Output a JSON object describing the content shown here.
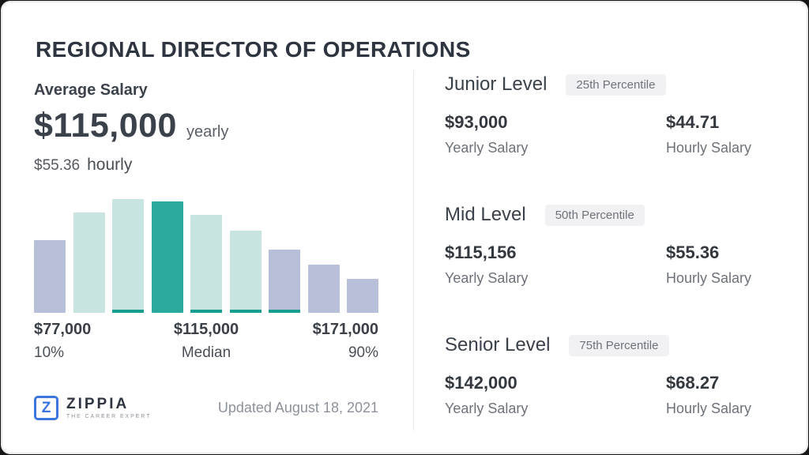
{
  "page": {
    "title": "REGIONAL DIRECTOR OF OPERATIONS"
  },
  "average": {
    "section_title": "Average Salary",
    "yearly_value": "$115,000",
    "yearly_unit": "yearly",
    "hourly_value": "$55.36",
    "hourly_unit": "hourly"
  },
  "chart_data": {
    "type": "bar",
    "title": "Salary distribution histogram",
    "xlabel": "",
    "ylabel": "",
    "grid": false,
    "legend": false,
    "x_tick_labels": [
      {
        "label": "$77,000",
        "sublabel": "10%"
      },
      {
        "label": "$115,000",
        "sublabel": "Median"
      },
      {
        "label": "$171,000",
        "sublabel": "90%"
      }
    ],
    "bars": [
      {
        "height_pct": 62,
        "color_key": "lavender",
        "baseline_stripe": false
      },
      {
        "height_pct": 86,
        "color_key": "mint",
        "baseline_stripe": false
      },
      {
        "height_pct": 97,
        "color_key": "mint",
        "baseline_stripe": true
      },
      {
        "height_pct": 95,
        "color_key": "teal",
        "baseline_stripe": false
      },
      {
        "height_pct": 84,
        "color_key": "mint",
        "baseline_stripe": true
      },
      {
        "height_pct": 70,
        "color_key": "mint",
        "baseline_stripe": true
      },
      {
        "height_pct": 54,
        "color_key": "lavender",
        "baseline_stripe": true
      },
      {
        "height_pct": 41,
        "color_key": "lavender",
        "baseline_stripe": false
      },
      {
        "height_pct": 29,
        "color_key": "lavender",
        "baseline_stripe": false
      }
    ],
    "colors": {
      "lavender": "#b8bfd9",
      "mint": "#c7e4e0",
      "teal": "#2ba99c",
      "stripe": "#17a08f"
    }
  },
  "footer": {
    "logo_letter": "Z",
    "logo_name": "ZIPPIA",
    "logo_tagline": "THE CAREER EXPERT",
    "updated": "Updated August 18, 2021",
    "logo_color": "#3c76dd"
  },
  "levels": [
    {
      "name": "Junior Level",
      "percentile": "25th Percentile",
      "yearly_value": "$93,000",
      "yearly_label": "Yearly Salary",
      "hourly_value": "$44.71",
      "hourly_label": "Hourly Salary"
    },
    {
      "name": "Mid Level",
      "percentile": "50th Percentile",
      "yearly_value": "$115,156",
      "yearly_label": "Yearly Salary",
      "hourly_value": "$55.36",
      "hourly_label": "Hourly Salary"
    },
    {
      "name": "Senior Level",
      "percentile": "75th Percentile",
      "yearly_value": "$142,000",
      "yearly_label": "Yearly Salary",
      "hourly_value": "$68.27",
      "hourly_label": "Hourly Salary"
    }
  ]
}
